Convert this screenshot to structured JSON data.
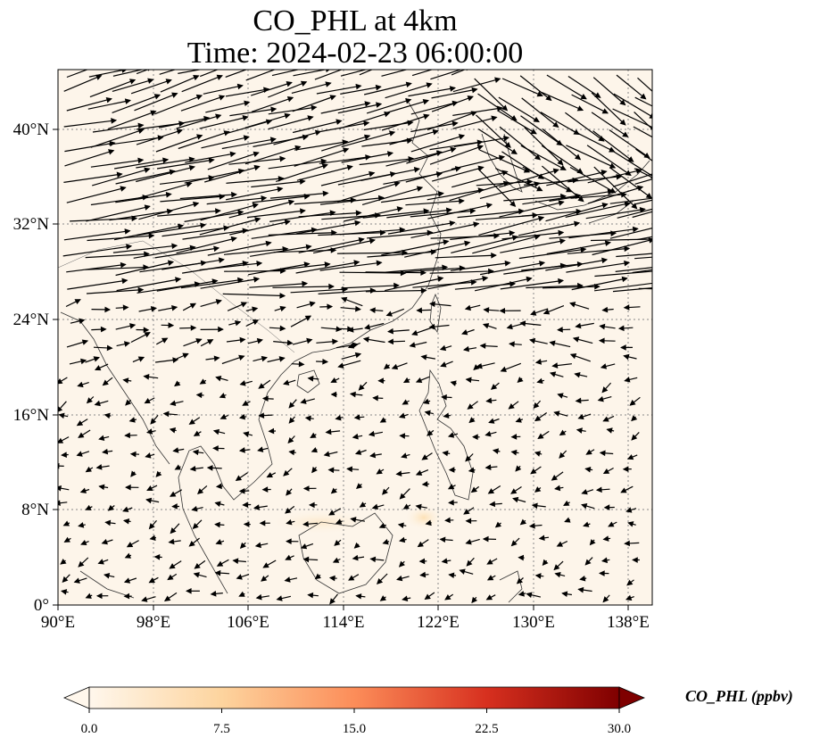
{
  "title": {
    "line1": "CO_PHL at 4km",
    "line2": "Time: 2024-02-23 06:00:00"
  },
  "axes": {
    "x_ticks": [
      "90°E",
      "98°E",
      "106°E",
      "114°E",
      "122°E",
      "130°E",
      "138°E"
    ],
    "y_ticks": [
      "0°",
      "8°N",
      "16°N",
      "24°N",
      "32°N",
      "40°N"
    ]
  },
  "map": {
    "type": "contour-with-wind-vectors",
    "lon_range": [
      90,
      140
    ],
    "lat_range": [
      0,
      45
    ],
    "gridlines": "dotted",
    "background_color": "#fdf5ea",
    "coast_color": "#333333",
    "vector_color": "#000000"
  },
  "colorbar": {
    "label": "CO_PHL (ppbv)",
    "tick_labels": [
      "0.0",
      "7.5",
      "15.0",
      "22.5",
      "30.0"
    ],
    "range": [
      0,
      30
    ],
    "cmap_stops": [
      "#fff7ec",
      "#fdd49e",
      "#fc8d59",
      "#d7301f",
      "#7f0000"
    ]
  }
}
